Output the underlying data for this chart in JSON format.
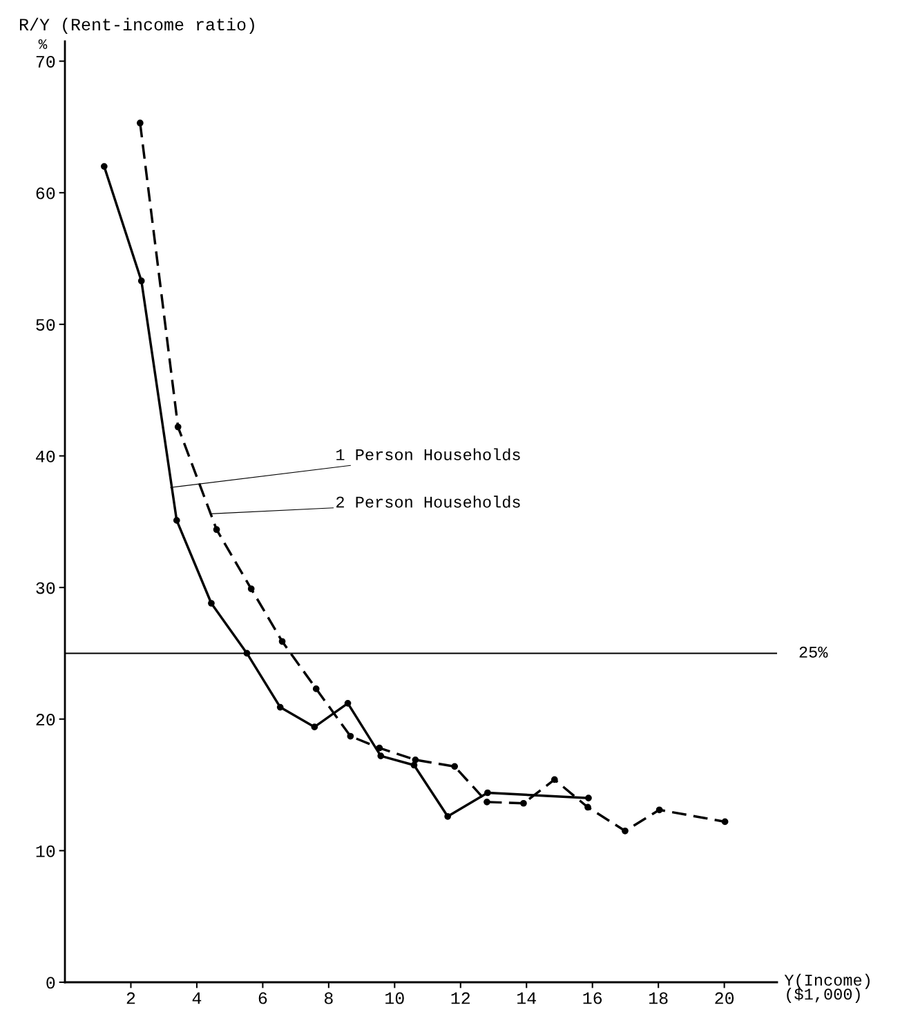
{
  "chart_data": {
    "type": "line",
    "ylabel": "R/Y (Rent-income ratio)",
    "xlabel": "Y(Income)\n($1,000)",
    "series": [
      {
        "color": "#000000",
        "line_style": "solid",
        "x": [
          1.19,
          2.32,
          3.39,
          4.44,
          5.52,
          6.53,
          7.57,
          8.58,
          9.58,
          10.59,
          11.61,
          12.82,
          15.88
        ],
        "values": [
          62.0,
          53.3,
          35.1,
          28.8,
          25.0,
          20.9,
          19.4,
          21.2,
          17.2,
          16.5,
          12.6,
          14.4,
          14.0
        ]
      },
      {
        "color": "#000000",
        "line_style": "dashed",
        "x": [
          2.28,
          3.43,
          4.6,
          5.65,
          6.59,
          7.62,
          8.66,
          9.54,
          10.63,
          11.82,
          12.8,
          13.91,
          14.85,
          15.86,
          16.99,
          18.03,
          20.02
        ],
        "values": [
          65.3,
          42.2,
          34.4,
          29.9,
          25.9,
          22.3,
          18.7,
          17.8,
          16.9,
          16.4,
          13.7,
          13.6,
          15.4,
          13.3,
          11.5,
          13.1,
          12.2
        ]
      }
    ],
    "annotations": [
      "%",
      {
        "text": "1 Person Households",
        "x": 3.2,
        "y": 37.6
      },
      {
        "text": "2 Person Households",
        "x": 4.41,
        "y": 35.6
      }
    ],
    "ref_lines": [
      {
        "axis": "y",
        "value": 25,
        "label": "25%",
        "color": "#000000"
      }
    ],
    "xlim": [
      0,
      21.6
    ],
    "ylim": [
      0,
      71.5
    ],
    "xticks": [
      2,
      4,
      6,
      8,
      10,
      12,
      14,
      16,
      18,
      20
    ],
    "yticks": [
      0,
      10,
      20,
      30,
      40,
      50,
      60,
      70
    ],
    "marker": "circle",
    "grid": false,
    "legend": false
  }
}
